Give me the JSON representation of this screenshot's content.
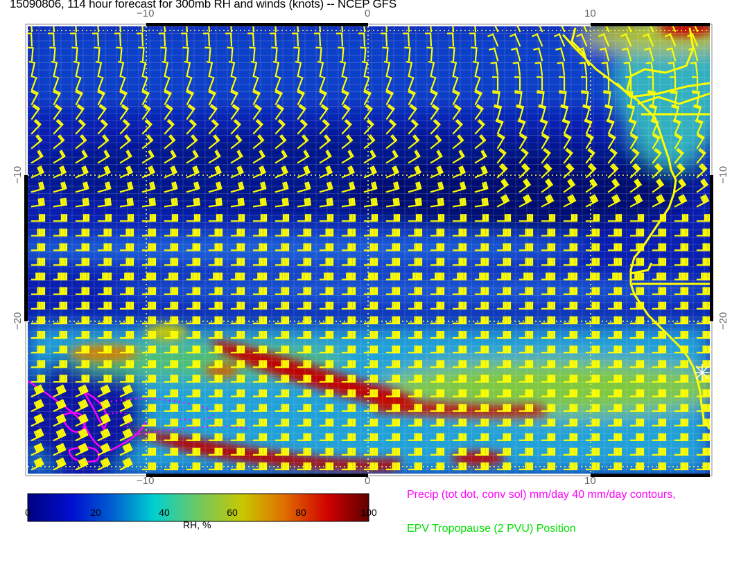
{
  "title": "15090806, 114 hour forecast for 300mb RH and winds (knots) -- NCEP GFS",
  "map": {
    "lon_ticks_top": [
      "−10",
      "0",
      "10"
    ],
    "lon_ticks_bottom": [
      "−10",
      "0",
      "10"
    ],
    "lat_ticks_left": [
      "−10",
      "−20"
    ],
    "lat_ticks_right": [
      "−10",
      "−20"
    ],
    "field": "300mb relative humidity",
    "overlay": "wind barbs (knots)",
    "barb_color": "#ffff00",
    "coastline_color": "#ffff00",
    "precip_contour_color": "#ff00ff",
    "marker": "white-asterisk"
  },
  "colorbar": {
    "ticks": [
      "0",
      "20",
      "40",
      "60",
      "80",
      "100"
    ],
    "label": "RH, %",
    "colors": [
      "#000080",
      "#0010d0",
      "#0070d8",
      "#00d0d0",
      "#60d070",
      "#c8c800",
      "#e07000",
      "#d00000",
      "#700000"
    ]
  },
  "legend": {
    "precip": "Precip (tot dot, conv sol) mm/day 40 mm/day contours,",
    "tropopause": "EPV Tropopause (2 PVU) Position"
  }
}
